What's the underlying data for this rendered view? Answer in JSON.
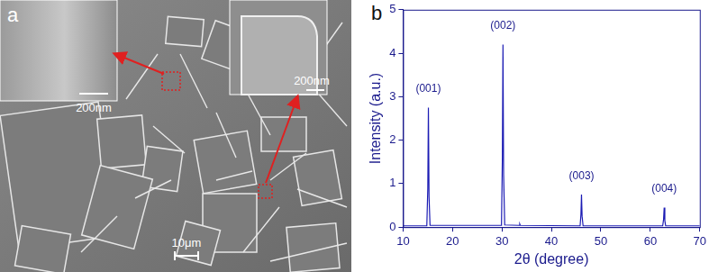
{
  "panel_a": {
    "label": "a",
    "inset_scale_bars": [
      "200nm",
      "200nm"
    ],
    "scale_bar": "10μm"
  },
  "chart_data": {
    "type": "line",
    "title": "b",
    "x_label": "2θ (degree)",
    "y_label": "Intensity (a.u.)",
    "x": [
      10,
      14.8,
      15.0,
      15.12,
      15.25,
      15.45,
      29.9,
      30.08,
      30.2,
      30.33,
      30.55,
      33.5,
      33.6,
      33.7,
      45.8,
      45.97,
      46.08,
      46.2,
      46.4,
      62.5,
      62.68,
      62.8,
      62.93,
      63.1,
      70
    ],
    "values": [
      0.03,
      0.03,
      0.9,
      2.75,
      0.7,
      0.04,
      0.04,
      1.6,
      4.2,
      1.2,
      0.05,
      0.04,
      0.07,
      0.04,
      0.03,
      0.3,
      0.75,
      0.25,
      0.03,
      0.03,
      0.18,
      0.45,
      0.15,
      0.03,
      0.03
    ],
    "color": "#1c1cb4",
    "xlim": [
      10,
      70
    ],
    "xticks": [
      10,
      20,
      30,
      40,
      50,
      60,
      70
    ],
    "ylim": [
      0,
      5
    ],
    "yticks": [
      0,
      1,
      2,
      3,
      4,
      5
    ],
    "grid": false,
    "annotations": [
      {
        "x": 15.1,
        "y": 3.05,
        "text": "(001)"
      },
      {
        "x": 30.2,
        "y": 4.5,
        "text": "(002)"
      },
      {
        "x": 46.1,
        "y": 1.05,
        "text": "(003)"
      },
      {
        "x": 62.8,
        "y": 0.75,
        "text": "(004)"
      }
    ]
  }
}
